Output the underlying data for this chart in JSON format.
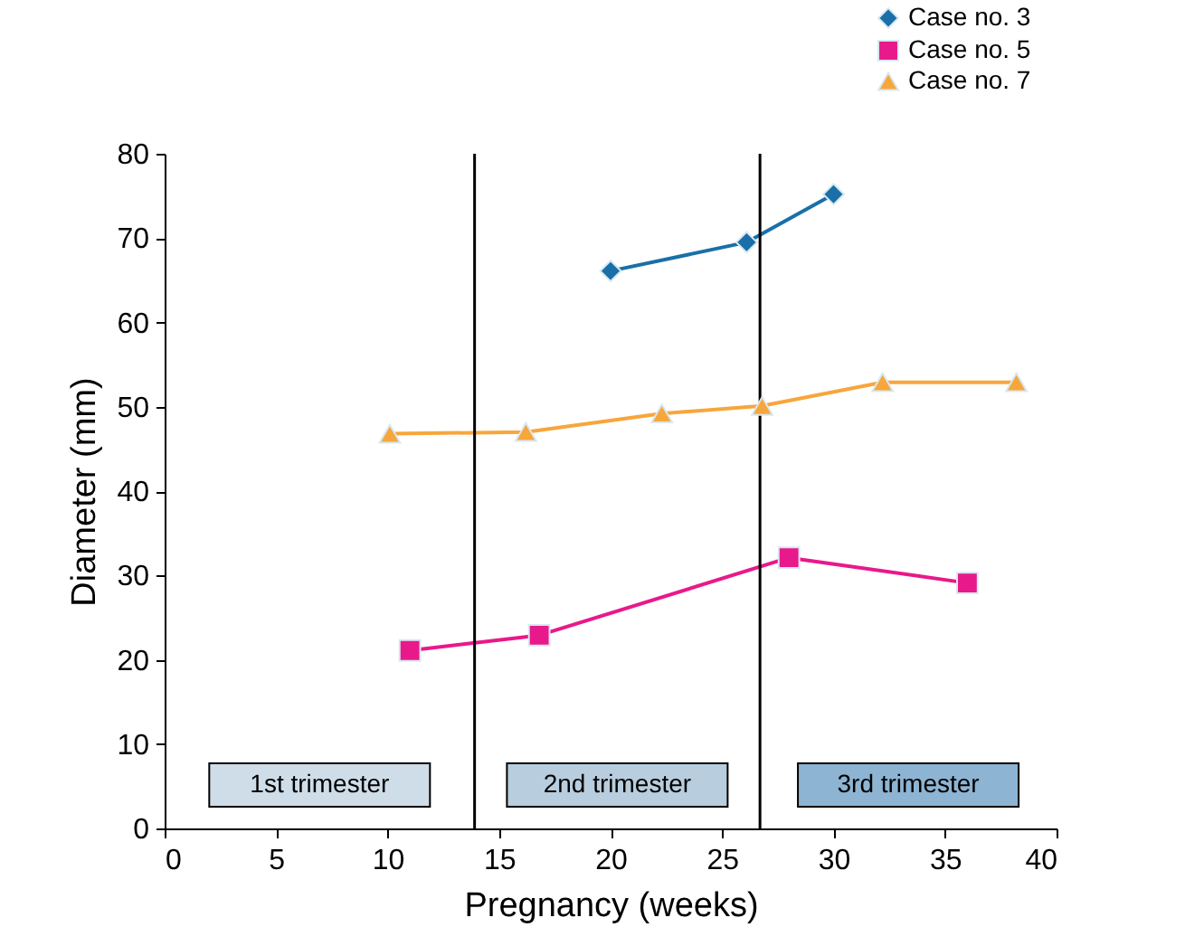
{
  "chart_data": {
    "type": "line",
    "xlabel": "Pregnancy (weeks)",
    "ylabel": "Diameter (mm)",
    "xlim": [
      0,
      40
    ],
    "xticks": [
      0,
      5,
      10,
      15,
      20,
      25,
      30,
      35,
      40
    ],
    "ylim": [
      0,
      80
    ],
    "yticks": [
      0,
      10,
      20,
      30,
      40,
      50,
      60,
      70,
      80
    ],
    "grid": false,
    "legend": "top right",
    "line_style": "solid",
    "series": [
      {
        "name": "Case no. 3",
        "color": "#1a6fa8",
        "marker": "diamond",
        "x": [
          20,
          26.1,
          30
        ],
        "values": [
          66.1,
          69.5,
          75.2
        ]
      },
      {
        "name": "Case no. 5",
        "color": "#e8198b",
        "marker": "square",
        "x": [
          11,
          16.8,
          28,
          36
        ],
        "values": [
          21.1,
          22.9,
          32.1,
          29.1
        ]
      },
      {
        "name": "Case no. 7",
        "color": "#f7a63c",
        "marker": "triangle",
        "x": [
          10.1,
          16.2,
          22.3,
          26.8,
          32.2,
          38.2
        ],
        "values": [
          46.8,
          47.0,
          49.2,
          50.1,
          52.9,
          52.9
        ]
      }
    ],
    "ref_lines": [
      {
        "axis": "x",
        "value": 13.9,
        "color": "#000000"
      },
      {
        "axis": "x",
        "value": 26.7,
        "color": "#000000"
      }
    ],
    "annotations": [
      "1st trimester",
      "2nd trimester",
      "3rd trimester"
    ]
  }
}
